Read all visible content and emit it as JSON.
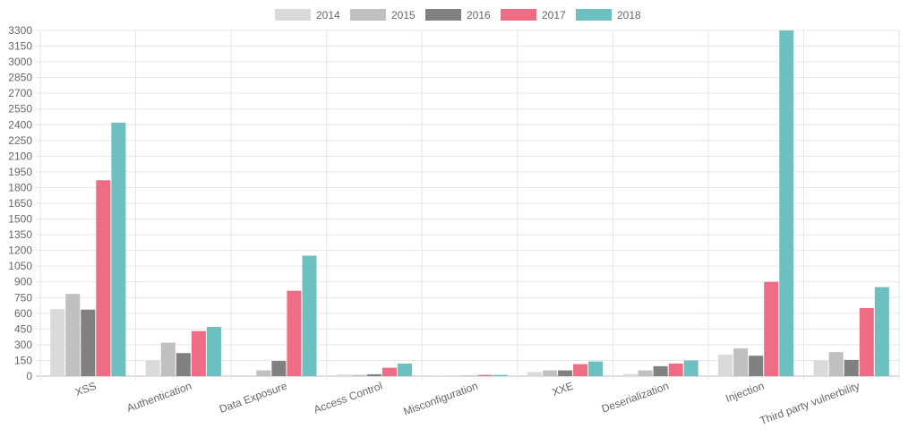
{
  "chart_data": {
    "type": "bar",
    "categories": [
      "XSS",
      "Authentication",
      "Data Exposure",
      "Access Control",
      "Misconfiguration",
      "XXE",
      "Deserialization",
      "Injection",
      "Third party vulnerbility"
    ],
    "series": [
      {
        "name": "2014",
        "color": "#dadada",
        "values": [
          640,
          150,
          8,
          15,
          3,
          40,
          20,
          205,
          150
        ]
      },
      {
        "name": "2015",
        "color": "#c0c0c0",
        "values": [
          785,
          320,
          55,
          12,
          3,
          55,
          55,
          265,
          230
        ]
      },
      {
        "name": "2016",
        "color": "#808080",
        "values": [
          635,
          220,
          145,
          18,
          3,
          55,
          95,
          195,
          155
        ]
      },
      {
        "name": "2017",
        "color": "#ee6d85",
        "values": [
          1870,
          430,
          815,
          80,
          12,
          115,
          120,
          900,
          650
        ]
      },
      {
        "name": "2018",
        "color": "#6cc0c0",
        "values": [
          2420,
          470,
          1150,
          120,
          12,
          140,
          150,
          3300,
          850
        ]
      }
    ],
    "y_ticks": [
      "0",
      "150",
      "300",
      "450",
      "600",
      "750",
      "900",
      "1050",
      "1200",
      "1350",
      "1500",
      "1650",
      "1800",
      "1950",
      "2100",
      "2250",
      "2400",
      "2550",
      "2700",
      "2850",
      "3000",
      "3150",
      "3300"
    ],
    "ylim": [
      0,
      3300
    ],
    "title": "",
    "xlabel": "",
    "ylabel": "",
    "grid": true,
    "legend_position": "top-center"
  }
}
